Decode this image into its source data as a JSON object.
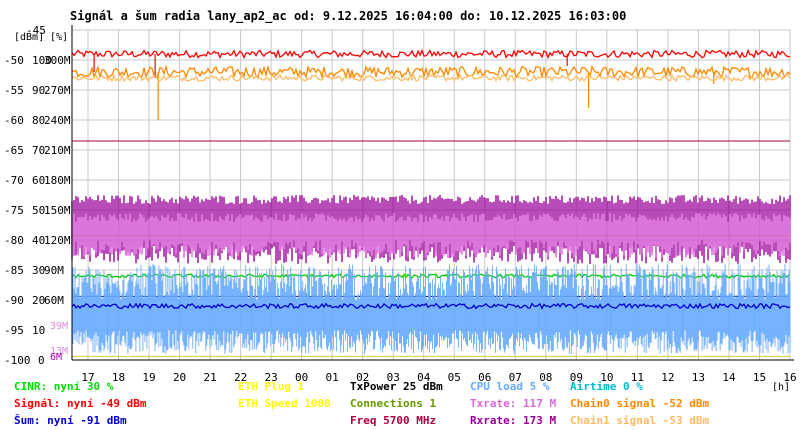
{
  "chart_data": {
    "type": "line",
    "title": "Signál a šum radia lany_ap2_ac od: 9.12.2025 16:04:00 do: 10.12.2025 16:03:00",
    "xlabel": "[h]",
    "x_ticks": [
      "17",
      "18",
      "19",
      "20",
      "21",
      "22",
      "23",
      "00",
      "01",
      "02",
      "03",
      "04",
      "05",
      "06",
      "07",
      "08",
      "09",
      "10",
      "11",
      "12",
      "13",
      "14",
      "15",
      "16"
    ],
    "y_axes": {
      "dbm": {
        "unit": "[dBm]",
        "ticks": [
          "-45",
          "-50",
          "-55",
          "-60",
          "-65",
          "-70",
          "-75",
          "-80",
          "-85",
          "-90",
          "-95",
          "-100"
        ],
        "range": [
          -100,
          -45
        ]
      },
      "pct": {
        "unit": "[%]",
        "ticks": [
          "100",
          "90",
          "80",
          "70",
          "60",
          "50",
          "40",
          "30",
          "20",
          "10",
          "0"
        ],
        "range": [
          0,
          100
        ]
      },
      "rate": {
        "ticks": [
          "300M",
          "270M",
          "240M",
          "210M",
          "180M",
          "150M",
          "120M",
          "90M",
          "60M"
        ]
      }
    },
    "ylim": [
      -100,
      -45
    ],
    "grid": true,
    "inline_labels": [
      {
        "text": "39M",
        "dbm": -94.2,
        "color": "#dd88dd"
      },
      {
        "text": "13M",
        "dbm": -98.3,
        "color": "#dd88dd"
      },
      {
        "text": "6M",
        "dbm": -99.3,
        "color": "#aa00aa"
      }
    ],
    "series": [
      {
        "name": "Signál",
        "color": "#ff0000",
        "base": -49,
        "spread": 0.6,
        "dips": [
          [
            17.2,
            -52
          ],
          [
            19.2,
            -53
          ],
          [
            8.7,
            -51
          ]
        ]
      },
      {
        "name": "Chain0 signal",
        "color": "#ff8800",
        "base": -52,
        "spread": 0.9,
        "dips": [
          [
            19.3,
            -60
          ],
          [
            9.4,
            -58
          ],
          [
            13.5,
            -54
          ]
        ]
      },
      {
        "name": "Chain1 signal",
        "color": "#ffbb66",
        "base": -53,
        "spread": 0.5,
        "dips": []
      },
      {
        "name": "Rxrate",
        "color": "#990099",
        "top": -74,
        "bottom": -81,
        "mode": "band"
      },
      {
        "name": "Txrate",
        "color": "#dd66dd",
        "top": -77,
        "bottom": -80,
        "mode": "band"
      },
      {
        "name": "CINR",
        "color": "#00cc00",
        "base": -86,
        "spread": 0.3,
        "dips": []
      },
      {
        "name": "CPU load",
        "color": "#66aaff",
        "top": -84,
        "bottom": -99,
        "mode": "noise"
      },
      {
        "name": "Šum",
        "color": "#0000cc",
        "base": -91,
        "spread": 0.4,
        "dips": []
      }
    ],
    "hlines": [
      {
        "dbm": -63.5,
        "color": "#aa0044"
      },
      {
        "dbm": -79.3,
        "color": "#cccc33"
      },
      {
        "dbm": -89.4,
        "color": "#000066"
      },
      {
        "dbm": -99.4,
        "color": "#cccc33"
      }
    ]
  },
  "legend": [
    {
      "text": "CINR: nyní 30 %",
      "color": "#00dd00",
      "col": 0,
      "row": 0
    },
    {
      "text": "Signál: nyní -49 dBm",
      "color": "#ff0000",
      "col": 0,
      "row": 1
    },
    {
      "text": "Šum: nyní -91 dBm",
      "color": "#0000cc",
      "col": 0,
      "row": 2
    },
    {
      "text": "ETH Plug 1",
      "color": "#ffff00",
      "col": 1,
      "row": 0
    },
    {
      "text": "ETH Speed 1000",
      "color": "#ffff00",
      "col": 1,
      "row": 1
    },
    {
      "text": "TxPower 25 dBm",
      "color": "#000000",
      "col": 2,
      "row": 0
    },
    {
      "text": "Connections 1",
      "color": "#669900",
      "col": 2,
      "row": 1
    },
    {
      "text": "Freq 5700 MHz",
      "color": "#aa0044",
      "col": 2,
      "row": 2
    },
    {
      "text": "CPU load 5 %",
      "color": "#66aaff",
      "col": 3,
      "row": 0
    },
    {
      "text": "Txrate: 117 M",
      "color": "#dd66dd",
      "col": 3,
      "row": 1
    },
    {
      "text": "Rxrate: 173 M",
      "color": "#990099",
      "col": 3,
      "row": 2
    },
    {
      "text": "Airtime 0 %",
      "color": "#00bbcc",
      "col": 4,
      "row": 0
    },
    {
      "text": "Chain0 signal -52 dBm",
      "color": "#ff8800",
      "col": 4,
      "row": 1
    },
    {
      "text": "Chain1 signal -53 dBm",
      "color": "#ffbb66",
      "col": 4,
      "row": 2
    }
  ]
}
